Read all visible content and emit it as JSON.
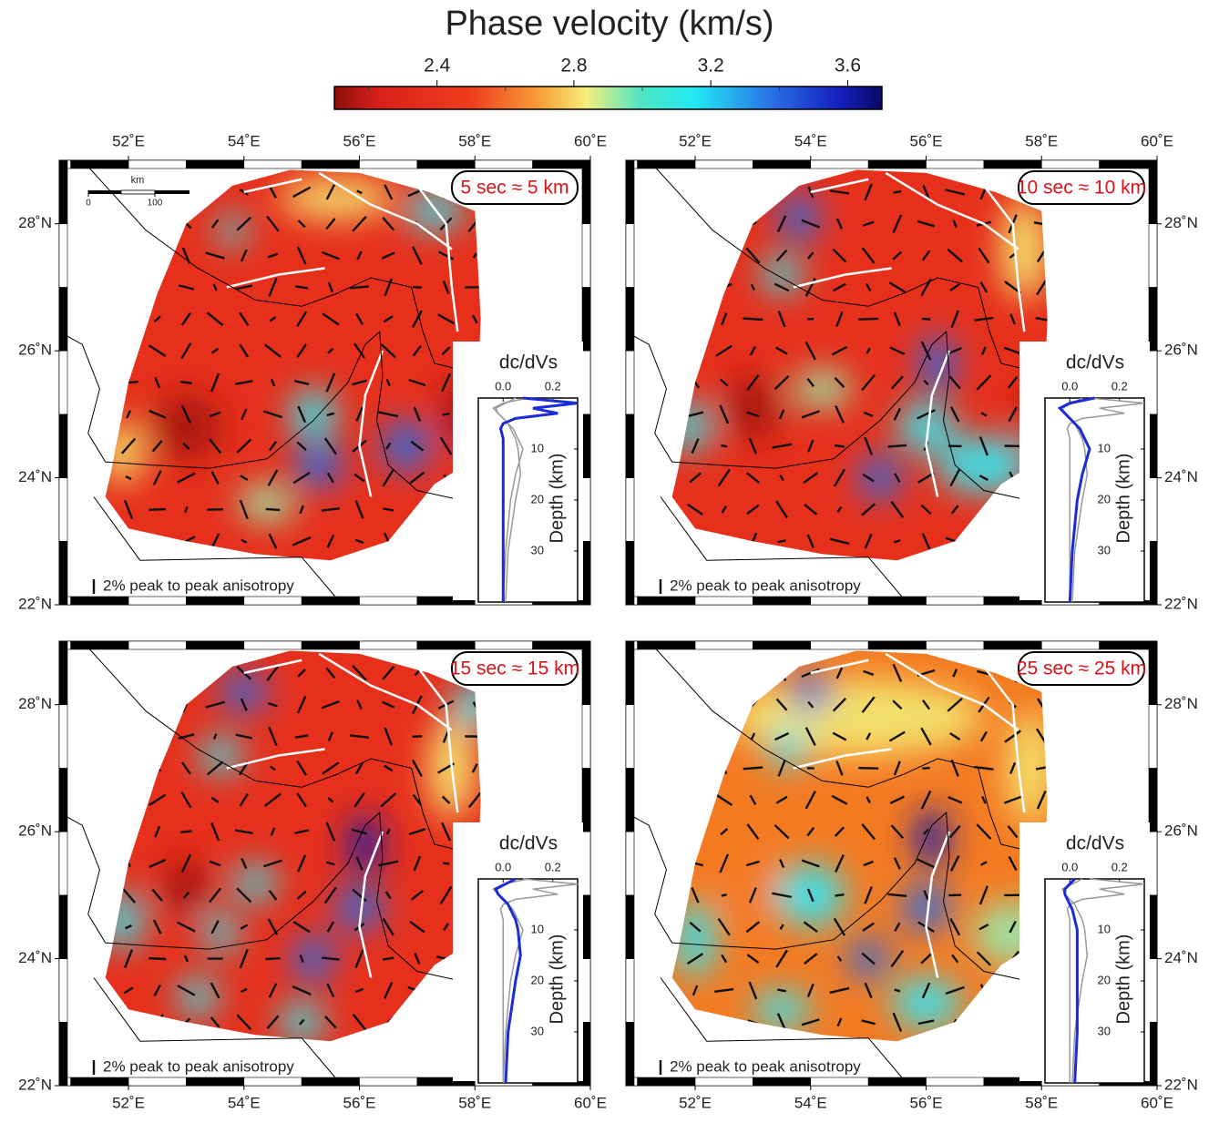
{
  "title": "Phase velocity (km/s)",
  "colorbar": {
    "lim": [
      2.1,
      3.7
    ],
    "ticks": [
      2.4,
      2.8,
      3.2,
      3.6
    ]
  },
  "map": {
    "xlim": [
      50.8,
      60
    ],
    "ylim": [
      22,
      29
    ],
    "xticks": [
      {
        "value": 52,
        "label": "52˚E"
      },
      {
        "value": 54,
        "label": "54˚E"
      },
      {
        "value": 56,
        "label": "56˚E"
      },
      {
        "value": 58,
        "label": "58˚E"
      },
      {
        "value": 60,
        "label": "60˚E"
      }
    ],
    "yticks": [
      {
        "value": 22,
        "label": "22˚N"
      },
      {
        "value": 24,
        "label": "24˚N"
      },
      {
        "value": 26,
        "label": "26˚N"
      },
      {
        "value": 28,
        "label": "28˚N"
      }
    ],
    "scale_bar": {
      "unit": "km",
      "ticks": [
        0,
        100
      ]
    },
    "anisotropy_legend": "2% peak to peak anisotropy"
  },
  "kernel": {
    "title": "dc/dVs",
    "ylabel": "Depth (km)",
    "xlim": [
      -0.1,
      0.3
    ],
    "xticks": [
      {
        "value": 0,
        "label": "0.0"
      },
      0.2
    ],
    "ylim": [
      0,
      40
    ],
    "yticks": [
      10,
      20,
      30
    ],
    "depth": [
      0,
      1,
      2,
      3,
      4,
      5,
      6,
      8,
      10,
      15,
      20,
      30,
      40
    ]
  },
  "panels": [
    {
      "label": "5 sec ≈ 5 km",
      "series": [
        {
          "color": "#1c2bd8",
          "values": [
            0.08,
            0.3,
            0.12,
            0.22,
            0.05,
            0.0,
            -0.01,
            0.0,
            0.0,
            0.0,
            0.0,
            0.0,
            0.0
          ]
        },
        {
          "color": "#999999",
          "values": [
            0.1,
            0.0,
            -0.04,
            -0.02,
            0.0,
            0.02,
            0.04,
            0.06,
            0.08,
            0.05,
            0.03,
            0.01,
            0.0
          ]
        },
        {
          "color": "#999999",
          "values": [
            0.05,
            0.01,
            -0.03,
            -0.02,
            0.0,
            0.02,
            0.03,
            0.05,
            0.06,
            0.07,
            0.05,
            0.02,
            0.01
          ]
        }
      ]
    },
    {
      "label": "10 sec ≈ 10 km",
      "series": [
        {
          "color": "#1c2bd8",
          "values": [
            0.1,
            0.0,
            -0.04,
            -0.02,
            0.0,
            0.02,
            0.04,
            0.06,
            0.08,
            0.05,
            0.03,
            0.01,
            0.0
          ]
        },
        {
          "color": "#999999",
          "values": [
            0.08,
            0.3,
            0.12,
            0.22,
            0.05,
            0.0,
            -0.01,
            0.0,
            0.0,
            0.0,
            0.0,
            0.0,
            0.0
          ]
        },
        {
          "color": "#999999",
          "values": [
            0.05,
            0.01,
            -0.03,
            -0.02,
            0.0,
            0.02,
            0.03,
            0.05,
            0.06,
            0.07,
            0.05,
            0.02,
            0.01
          ]
        }
      ]
    },
    {
      "label": "15 sec ≈ 15 km",
      "series": [
        {
          "color": "#1c2bd8",
          "values": [
            0.05,
            0.01,
            -0.03,
            -0.02,
            0.0,
            0.02,
            0.03,
            0.05,
            0.06,
            0.07,
            0.05,
            0.02,
            0.01
          ]
        },
        {
          "color": "#999999",
          "values": [
            0.08,
            0.3,
            0.12,
            0.22,
            0.05,
            0.0,
            -0.01,
            0.0,
            0.0,
            0.0,
            0.0,
            0.0,
            0.0
          ]
        },
        {
          "color": "#999999",
          "values": [
            0.1,
            0.0,
            -0.04,
            -0.02,
            0.0,
            0.02,
            0.04,
            0.06,
            0.08,
            0.05,
            0.03,
            0.01,
            0.0
          ]
        }
      ]
    },
    {
      "label": "25 sec ≈ 25 km",
      "series": [
        {
          "color": "#1c2bd8",
          "values": [
            0.02,
            0.0,
            -0.02,
            -0.02,
            -0.01,
            0.0,
            0.01,
            0.02,
            0.03,
            0.03,
            0.03,
            0.03,
            0.02
          ]
        },
        {
          "color": "#999999",
          "values": [
            0.08,
            0.3,
            0.12,
            0.22,
            0.05,
            0.0,
            -0.01,
            0.0,
            0.0,
            0.0,
            0.0,
            0.0,
            0.0
          ]
        },
        {
          "color": "#999999",
          "values": [
            0.05,
            0.01,
            -0.03,
            -0.02,
            0.0,
            0.02,
            0.03,
            0.05,
            0.06,
            0.07,
            0.05,
            0.02,
            0.01
          ]
        }
      ]
    }
  ]
}
